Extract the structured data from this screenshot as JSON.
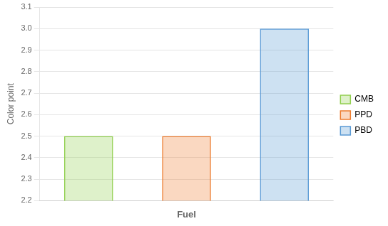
{
  "chart_data": {
    "type": "bar",
    "categories": [
      "CMB",
      "PPD",
      "PBD"
    ],
    "values": [
      2.5,
      2.5,
      3.0
    ],
    "colors": [
      "#92d050",
      "#ed7d31",
      "#5b9bd5"
    ],
    "xlabel": "Fuel",
    "ylabel": "Color point",
    "ylim": [
      2.2,
      3.1
    ],
    "yticks": [
      2.2,
      2.3,
      2.4,
      2.5,
      2.6,
      2.7,
      2.8,
      2.9,
      {
        "value": 3.0,
        "label": "3.0"
      },
      3.1
    ],
    "grid": true,
    "legend": "right",
    "tick_labels": "y"
  }
}
